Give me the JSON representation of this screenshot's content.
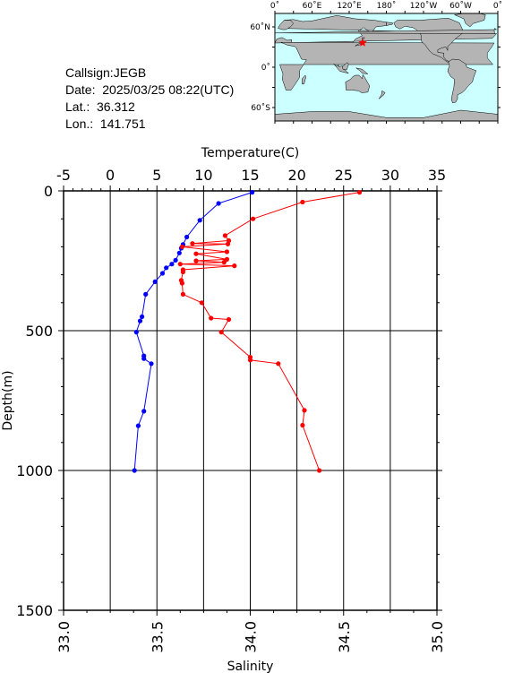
{
  "info": {
    "callsign": "Callsign:JEGB",
    "date": "Date:  2025/03/25 08:22(UTC)",
    "lat": "Lat.:  36.312",
    "lon": "Lon.:  141.751"
  },
  "map": {
    "lon_labels": [
      "0˚",
      "60˚E",
      "120˚E",
      "180˚",
      "120˚W",
      "60˚W",
      "0˚"
    ],
    "lat_labels": [
      "60˚N",
      "0˚",
      "60˚S"
    ],
    "ocean_color": "#ccffff",
    "land_color": "#b4b4b4",
    "station": {
      "lon": 141.751,
      "lat": 36.312,
      "color": "#ff0000"
    }
  },
  "chart_data": {
    "type": "line",
    "top_axis": {
      "label": "Temperature(C)",
      "range": [
        -5,
        35
      ],
      "ticks": [
        "-5",
        "0",
        "5",
        "10",
        "15",
        "20",
        "25",
        "30",
        "35"
      ]
    },
    "bottom_axis": {
      "label": "Salinity",
      "range": [
        33.0,
        35.0
      ],
      "ticks": [
        "33.0",
        "33.5",
        "34.0",
        "34.5",
        "35.0"
      ]
    },
    "y_axis": {
      "label": "Depth(m)",
      "range": [
        0,
        1500
      ],
      "inverted": true,
      "ticks": [
        "0",
        "500",
        "1000",
        "1500"
      ]
    },
    "grid": true,
    "series": [
      {
        "quantity": "salinity",
        "color": "#0000ff",
        "points": [
          [
            34.01,
            5
          ],
          [
            33.83,
            45
          ],
          [
            33.73,
            105
          ],
          [
            33.66,
            165
          ],
          [
            33.64,
            192
          ],
          [
            33.63,
            205
          ],
          [
            33.62,
            222
          ],
          [
            33.6,
            248
          ],
          [
            33.58,
            262
          ],
          [
            33.55,
            275
          ],
          [
            33.53,
            295
          ],
          [
            33.49,
            325
          ],
          [
            33.44,
            370
          ],
          [
            33.42,
            450
          ],
          [
            33.41,
            465
          ],
          [
            33.39,
            505
          ],
          [
            33.43,
            590
          ],
          [
            33.43,
            600
          ],
          [
            33.47,
            618
          ],
          [
            33.43,
            788
          ],
          [
            33.4,
            840
          ],
          [
            33.38,
            1000
          ]
        ]
      },
      {
        "quantity": "temperature",
        "color": "#ff0000",
        "points": [
          [
            26.7,
            5
          ],
          [
            20.6,
            40
          ],
          [
            15.3,
            100
          ],
          [
            12.3,
            160
          ],
          [
            12.7,
            178
          ],
          [
            8.8,
            188
          ],
          [
            12.6,
            190
          ],
          [
            7.7,
            200
          ],
          [
            12.5,
            218
          ],
          [
            9.2,
            225
          ],
          [
            12.5,
            245
          ],
          [
            9.2,
            250
          ],
          [
            12.2,
            255
          ],
          [
            7.5,
            262
          ],
          [
            13.3,
            268
          ],
          [
            7.8,
            282
          ],
          [
            7.8,
            290
          ],
          [
            7.6,
            320
          ],
          [
            7.7,
            330
          ],
          [
            7.8,
            370
          ],
          [
            9.8,
            400
          ],
          [
            10.8,
            455
          ],
          [
            12.7,
            460
          ],
          [
            11.9,
            505
          ],
          [
            15.0,
            595
          ],
          [
            15.0,
            605
          ],
          [
            18.0,
            618
          ],
          [
            20.8,
            785
          ],
          [
            20.6,
            838
          ],
          [
            22.4,
            1000
          ]
        ]
      }
    ]
  }
}
